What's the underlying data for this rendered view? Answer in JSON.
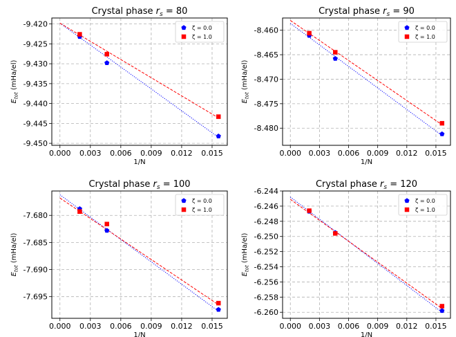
{
  "figure": {
    "background": "#ffffff"
  },
  "chart_data": [
    {
      "type": "scatter",
      "title": "Crystal phase r_s = 80",
      "title_main": "Crystal phase ",
      "title_var": "r",
      "title_sub": "s",
      "title_tail": " = 80",
      "xlabel": "1/N",
      "ylabel": "E_tot (mHa/el)",
      "ylabel_main": "E",
      "ylabel_sub": "tot",
      "ylabel_tail": " (mHa/el)",
      "xlim": [
        -0.0008,
        0.0165
      ],
      "ylim": [
        -9.4505,
        -9.4185
      ],
      "xticks": [
        0.0,
        0.003,
        0.006,
        0.009,
        0.012,
        0.015
      ],
      "xtick_labels": [
        "0.000",
        "0.003",
        "0.006",
        "0.009",
        "0.012",
        "0.015"
      ],
      "yticks": [
        -9.42,
        -9.425,
        -9.43,
        -9.435,
        -9.44,
        -9.445,
        -9.45
      ],
      "ytick_labels": [
        "-9.420",
        "-9.425",
        "-9.430",
        "-9.435",
        "-9.440",
        "-9.445",
        "-9.450"
      ],
      "grid": true,
      "legend": "top-right",
      "series": [
        {
          "name": "ζ = 0.0",
          "color": "#0000ff",
          "marker": "pentagon",
          "x": [
            0.00195,
            0.00463,
            0.01563
          ],
          "y": [
            -9.4232,
            -9.4298,
            -9.4482
          ],
          "fit": [
            [
              0.0,
              -9.4198
            ],
            [
              0.01563,
              -9.4485
            ]
          ]
        },
        {
          "name": "ζ = 1.0",
          "color": "#ff0000",
          "marker": "square",
          "x": [
            0.00195,
            0.00463,
            0.01563
          ],
          "y": [
            -9.4226,
            -9.4276,
            -9.4433
          ],
          "fit": [
            [
              0.0,
              -9.4198
            ],
            [
              0.01563,
              -9.4436
            ]
          ]
        }
      ]
    },
    {
      "type": "scatter",
      "title": "Crystal phase r_s = 90",
      "title_main": "Crystal phase ",
      "title_var": "r",
      "title_sub": "s",
      "title_tail": " = 90",
      "xlabel": "1/N",
      "ylabel": "E_tot (mHa/el)",
      "ylabel_main": "E",
      "ylabel_sub": "tot",
      "ylabel_tail": " (mHa/el)",
      "xlim": [
        -0.0008,
        0.0165
      ],
      "ylim": [
        -8.4835,
        -8.4575
      ],
      "xticks": [
        0.0,
        0.003,
        0.006,
        0.009,
        0.012,
        0.015
      ],
      "xtick_labels": [
        "0.000",
        "0.003",
        "0.006",
        "0.009",
        "0.012",
        "0.015"
      ],
      "yticks": [
        -8.46,
        -8.465,
        -8.47,
        -8.475,
        -8.48
      ],
      "ytick_labels": [
        "-8.460",
        "-8.465",
        "-8.470",
        "-8.475",
        "-8.480"
      ],
      "grid": true,
      "legend": "top-right",
      "series": [
        {
          "name": "ζ = 0.0",
          "color": "#0000ff",
          "marker": "pentagon",
          "x": [
            0.00195,
            0.00463,
            0.01563
          ],
          "y": [
            -8.4611,
            -8.4658,
            -8.4812
          ],
          "fit": [
            [
              0.0,
              -8.4586
            ],
            [
              0.01563,
              -8.4815
            ]
          ]
        },
        {
          "name": "ζ = 1.0",
          "color": "#ff0000",
          "marker": "square",
          "x": [
            0.00195,
            0.00463,
            0.01563
          ],
          "y": [
            -8.4606,
            -8.4645,
            -8.479
          ],
          "fit": [
            [
              0.0,
              -8.458
            ],
            [
              0.01563,
              -8.4793
            ]
          ]
        }
      ]
    },
    {
      "type": "scatter",
      "title": "Crystal phase r_s = 100",
      "title_main": "Crystal phase ",
      "title_var": "r",
      "title_sub": "s",
      "title_tail": " = 100",
      "xlabel": "1/N",
      "ylabel": "E_tot (mHa/el)",
      "ylabel_main": "E",
      "ylabel_sub": "tot",
      "ylabel_tail": " (mHa/el)",
      "xlim": [
        -0.0008,
        0.0165
      ],
      "ylim": [
        -7.699,
        -7.6755
      ],
      "xticks": [
        0.0,
        0.003,
        0.006,
        0.009,
        0.012,
        0.015
      ],
      "xtick_labels": [
        "0.000",
        "0.003",
        "0.006",
        "0.009",
        "0.012",
        "0.015"
      ],
      "yticks": [
        -7.68,
        -7.685,
        -7.69,
        -7.695
      ],
      "ytick_labels": [
        "-7.680",
        "-7.685",
        "-7.690",
        "-7.695"
      ],
      "grid": true,
      "legend": "top-right",
      "series": [
        {
          "name": "ζ = 0.0",
          "color": "#0000ff",
          "marker": "pentagon",
          "x": [
            0.00195,
            0.00463,
            0.01563
          ],
          "y": [
            -7.6788,
            -7.6828,
            -7.6974
          ],
          "fit": [
            [
              0.0,
              -7.6762
            ],
            [
              0.01563,
              -7.6977
            ]
          ]
        },
        {
          "name": "ζ = 1.0",
          "color": "#ff0000",
          "marker": "square",
          "x": [
            0.00195,
            0.00463,
            0.01563
          ],
          "y": [
            -7.6793,
            -7.6816,
            -7.6962
          ],
          "fit": [
            [
              0.0,
              -7.6768
            ],
            [
              0.01563,
              -7.6965
            ]
          ]
        }
      ]
    },
    {
      "type": "scatter",
      "title": "Crystal phase r_s = 120",
      "title_main": "Crystal phase ",
      "title_var": "r",
      "title_sub": "s",
      "title_tail": " = 120",
      "xlabel": "1/N",
      "ylabel": "E_tot (mHa/el)",
      "ylabel_main": "E",
      "ylabel_sub": "tot",
      "ylabel_tail": " (mHa/el)",
      "xlim": [
        -0.0008,
        0.0165
      ],
      "ylim": [
        -6.2608,
        -6.244
      ],
      "xticks": [
        0.0,
        0.003,
        0.006,
        0.009,
        0.012,
        0.015
      ],
      "xtick_labels": [
        "0.000",
        "0.003",
        "0.006",
        "0.009",
        "0.012",
        "0.015"
      ],
      "yticks": [
        -6.244,
        -6.246,
        -6.248,
        -6.25,
        -6.252,
        -6.254,
        -6.256,
        -6.258,
        -6.26
      ],
      "ytick_labels": [
        "-6.244",
        "-6.246",
        "-6.248",
        "-6.250",
        "-6.252",
        "-6.254",
        "-6.256",
        "-6.258",
        "-6.260"
      ],
      "grid": true,
      "legend": "top-right",
      "series": [
        {
          "name": "ζ = 0.0",
          "color": "#0000ff",
          "marker": "pentagon",
          "x": [
            0.00195,
            0.00463,
            0.01563
          ],
          "y": [
            -6.2467,
            -6.2495,
            -6.2598
          ],
          "fit": [
            [
              0.0,
              -6.2448
            ],
            [
              0.01563,
              -6.26
            ]
          ]
        },
        {
          "name": "ζ = 1.0",
          "color": "#ff0000",
          "marker": "square",
          "x": [
            0.00195,
            0.00463,
            0.01563
          ],
          "y": [
            -6.2466,
            -6.2496,
            -6.2592
          ],
          "fit": [
            [
              0.0,
              -6.2451
            ],
            [
              0.01563,
              -6.2595
            ]
          ]
        }
      ]
    }
  ]
}
